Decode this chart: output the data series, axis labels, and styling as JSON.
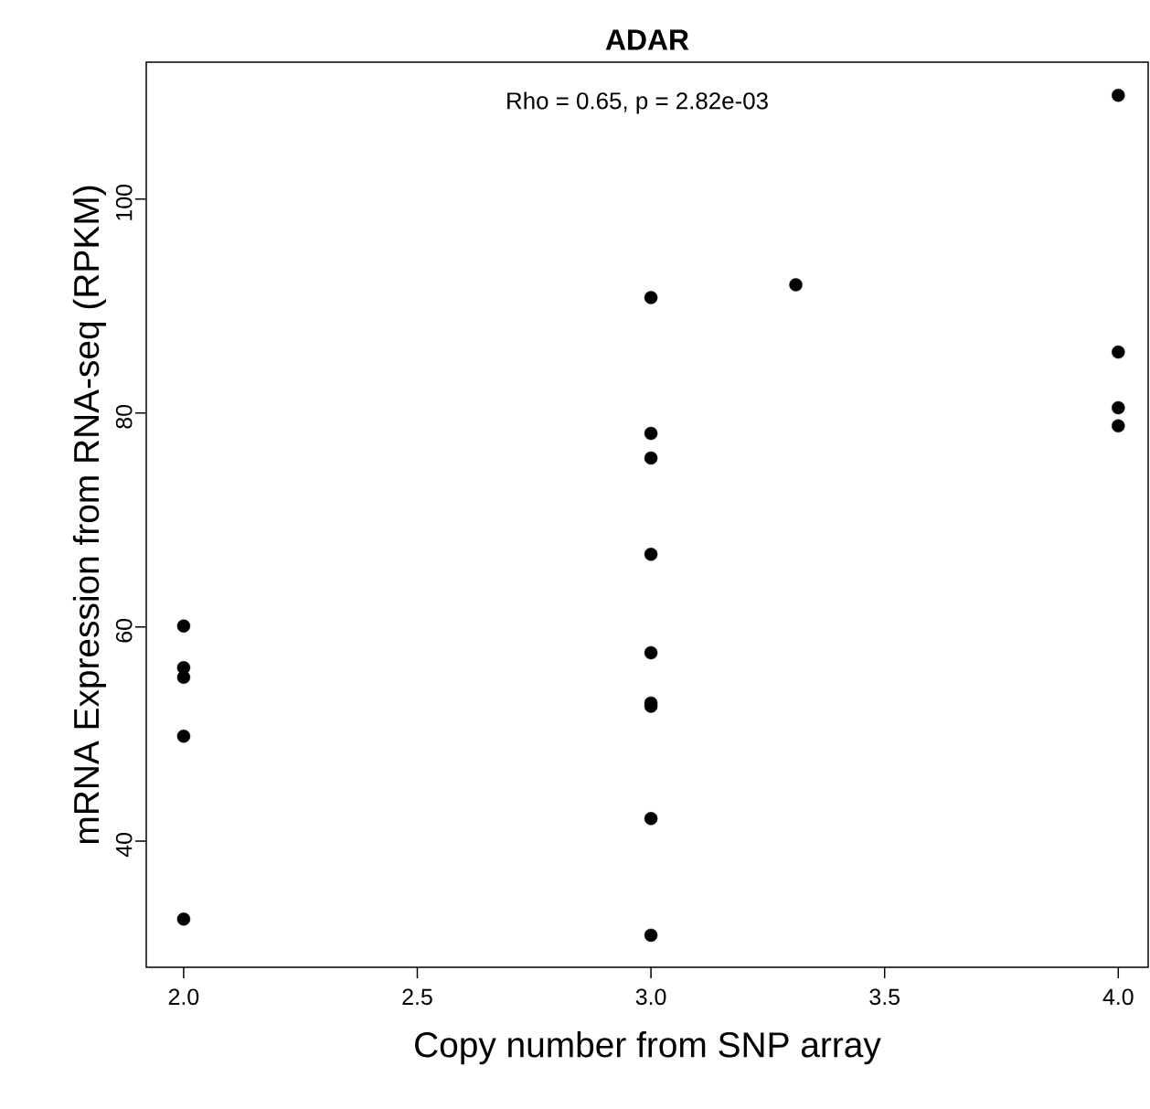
{
  "chart_data": {
    "type": "scatter",
    "title": "ADAR",
    "xlabel": "Copy number from SNP array",
    "ylabel": "mRNA Expression from RNA-seq (RPKM)",
    "annotations": [
      "Rho = 0.65, p = 2.82e-03"
    ],
    "x": [
      2,
      2,
      2,
      2,
      2,
      3,
      3,
      3,
      3,
      3,
      3,
      3,
      3,
      3,
      3.31,
      4,
      4,
      4,
      4
    ],
    "values": [
      60.1,
      56.2,
      55.3,
      49.8,
      32.7,
      90.8,
      78.1,
      75.8,
      66.8,
      57.6,
      52.9,
      52.6,
      42.1,
      31.2,
      92.0,
      109.7,
      85.7,
      80.5,
      78.8
    ],
    "color": "#000000",
    "marker": "circle",
    "xlim": [
      1.92,
      4.064
    ],
    "ylim": [
      28.2,
      112.8
    ],
    "xticks": [
      {
        "value": 2,
        "label": "2.0"
      },
      {
        "value": 2.5,
        "label": "2.5"
      },
      {
        "value": 3,
        "label": "3.0"
      },
      {
        "value": 3.5,
        "label": "3.5"
      },
      {
        "value": 4,
        "label": "4.0"
      }
    ],
    "yticks": [
      40,
      60,
      80,
      100
    ]
  }
}
